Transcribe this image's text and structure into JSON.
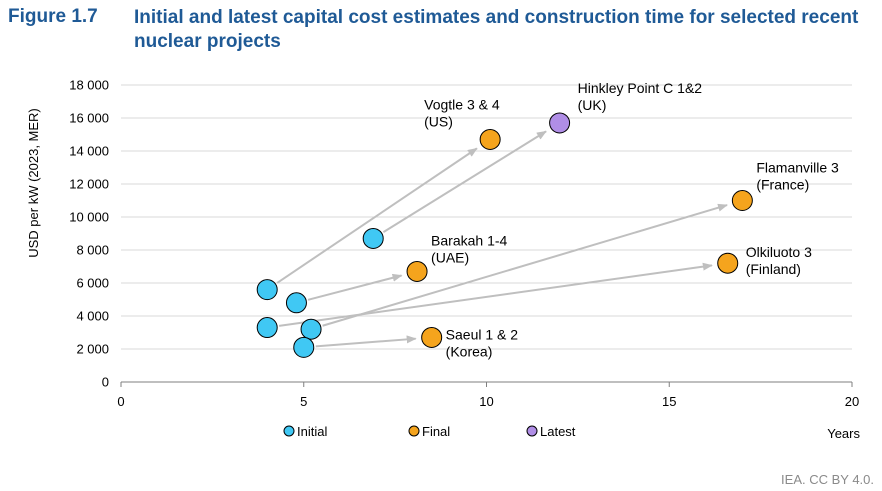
{
  "figure": {
    "label": "Figure 1.7",
    "title": "Initial and latest capital cost estimates and construction time for selected recent nuclear projects",
    "credit": "IEA. CC BY 4.0."
  },
  "colors": {
    "initial": "#40c8f4",
    "final": "#f5a41d",
    "latest": "#b08ee6",
    "arrow": "#bfbfbf",
    "grid": "#d9d9d9",
    "title": "#1f5a96"
  },
  "chart_data": {
    "type": "scatter",
    "xlabel": "Years",
    "ylabel": "USD per kW (2023, MER)",
    "xlim": [
      0,
      20
    ],
    "ylim": [
      0,
      18000
    ],
    "x_ticks": [
      "0",
      "5",
      "10",
      "15",
      "20"
    ],
    "y_ticks": [
      "0",
      "2 000",
      "4 000",
      "6 000",
      "8 000",
      "10 000",
      "12 000",
      "14 000",
      "16 000",
      "18 000"
    ],
    "grid": "horizontal",
    "legend_position": "bottom",
    "series": [
      {
        "name": "Initial",
        "color": "#40c8f4"
      },
      {
        "name": "Final",
        "color": "#f5a41d"
      },
      {
        "name": "Latest",
        "color": "#b08ee6"
      }
    ],
    "projects": [
      {
        "label_lines": [
          "Vogtle 3 & 4",
          "(US)"
        ],
        "initial": [
          4.0,
          5600
        ],
        "end": [
          10.1,
          14700
        ],
        "end_type": "Final"
      },
      {
        "label_lines": [
          "Hinkley Point C 1&2",
          "(UK)"
        ],
        "initial": [
          6.9,
          8700
        ],
        "end": [
          12.0,
          15700
        ],
        "end_type": "Latest"
      },
      {
        "label_lines": [
          "Flamanville 3",
          "(France)"
        ],
        "initial": [
          5.2,
          3200
        ],
        "end": [
          17.0,
          11000
        ],
        "end_type": "Final"
      },
      {
        "label_lines": [
          "Barakah 1-4",
          "(UAE)"
        ],
        "initial": [
          4.8,
          4800
        ],
        "end": [
          8.1,
          6700
        ],
        "end_type": "Final"
      },
      {
        "label_lines": [
          "Olkiluoto 3",
          "(Finland)"
        ],
        "initial": [
          4.0,
          3300
        ],
        "end": [
          16.6,
          7200
        ],
        "end_type": "Final"
      },
      {
        "label_lines": [
          "Saeul 1 & 2",
          "(Korea)"
        ],
        "initial": [
          5.0,
          2100
        ],
        "end": [
          8.5,
          2700
        ],
        "end_type": "Final"
      }
    ]
  }
}
